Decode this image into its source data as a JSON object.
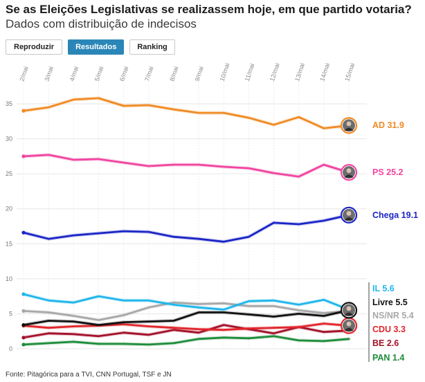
{
  "header": {
    "title": "Se as Eleições Legislativas se realizassem hoje, em que partido votaria?",
    "subtitle": "Dados com distribuição de indecisos"
  },
  "controls": {
    "replay_label": "Reproduzir",
    "results_label": "Resultados",
    "ranking_label": "Ranking"
  },
  "footer": {
    "source": "Fonte: Pitagórica para a TVI, CNN Portugal, TSF e JN"
  },
  "chart_data": {
    "type": "line",
    "title": "Se as Eleições Legislativas se realizassem hoje, em que partido votaria?",
    "subtitle": "Dados com distribuição de indecisos",
    "xlabel": "",
    "ylabel": "",
    "ylim": [
      0,
      38
    ],
    "yticks": [
      "0",
      "5",
      "10",
      "15",
      "20",
      "25",
      "30",
      "35"
    ],
    "x": [
      "2/mai",
      "3/mai",
      "4/mai",
      "5/mai",
      "6/mai",
      "7/mai",
      "8/mai",
      "9/mai",
      "10/mai",
      "11/mai",
      "12/mai",
      "13/mai",
      "14/mai",
      "15/mai"
    ],
    "grid": true,
    "series": [
      {
        "name": "NS/NR",
        "label": "NS/NR 5.4",
        "color": "#a8a8a8",
        "values": [
          5.4,
          5.2,
          4.7,
          4.1,
          4.8,
          5.9,
          6.6,
          6.4,
          6.5,
          6.1,
          6.1,
          5.5,
          5.1,
          5.4
        ]
      },
      {
        "name": "PAN",
        "label": "PAN 1.4",
        "color": "#1e8c3a",
        "values": [
          0.6,
          0.8,
          1.0,
          0.7,
          0.7,
          0.6,
          0.8,
          1.4,
          1.6,
          1.5,
          1.8,
          1.2,
          1.1,
          1.4
        ]
      },
      {
        "name": "BE",
        "label": "BE 2.6",
        "color": "#a3122a",
        "values": [
          1.6,
          2.2,
          2.1,
          1.8,
          2.3,
          2.0,
          2.7,
          2.3,
          3.4,
          2.8,
          2.2,
          3.1,
          2.4,
          2.6
        ]
      },
      {
        "name": "CDU",
        "label": "CDU 3.3",
        "color": "#e0262c",
        "values": [
          3.3,
          3.0,
          3.2,
          3.3,
          3.5,
          3.2,
          3.0,
          2.8,
          2.7,
          2.9,
          3.0,
          3.1,
          3.6,
          3.3
        ]
      },
      {
        "name": "Livre",
        "label": "Livre 5.5",
        "color": "#111111",
        "values": [
          3.4,
          4.0,
          3.9,
          3.4,
          3.8,
          3.9,
          4.0,
          5.2,
          5.2,
          4.9,
          4.6,
          5.0,
          4.7,
          5.5
        ]
      },
      {
        "name": "IL",
        "label": "IL 5.6",
        "color": "#1fb6ea",
        "values": [
          7.8,
          6.9,
          6.6,
          7.5,
          6.9,
          6.9,
          6.3,
          5.9,
          5.6,
          6.8,
          6.9,
          6.3,
          7.0,
          5.6
        ]
      },
      {
        "name": "Chega",
        "label": "Chega 19.1",
        "color": "#1b25c5",
        "values": [
          16.6,
          15.7,
          16.2,
          16.5,
          16.8,
          16.7,
          16.0,
          15.7,
          15.3,
          16.0,
          18.0,
          17.8,
          18.3,
          19.1
        ]
      },
      {
        "name": "PS",
        "label": "PS 25.2",
        "color": "#f0459f",
        "values": [
          27.5,
          27.7,
          27.0,
          27.1,
          26.6,
          26.1,
          26.3,
          26.3,
          26.0,
          25.8,
          25.1,
          24.6,
          26.3,
          25.2
        ]
      },
      {
        "name": "AD",
        "label": "AD 31.9",
        "color": "#f08a24",
        "values": [
          34.0,
          34.5,
          35.6,
          35.8,
          34.7,
          34.8,
          34.2,
          33.7,
          33.7,
          33.0,
          32.0,
          33.1,
          31.5,
          31.9
        ]
      }
    ],
    "portrait_series": [
      "AD",
      "PS",
      "Chega",
      "Livre",
      "CDU"
    ]
  }
}
